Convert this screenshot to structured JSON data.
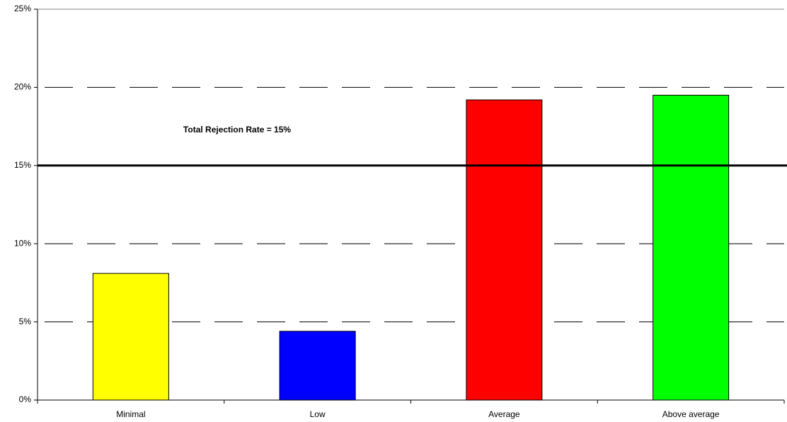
{
  "chart_data": {
    "type": "bar",
    "categories": [
      "Minimal",
      "Low",
      "Average",
      "Above average"
    ],
    "values": [
      8.1,
      4.4,
      19.2,
      19.5
    ],
    "colors": [
      "#ffff00",
      "#0000ff",
      "#ff0000",
      "#00ff00"
    ],
    "ylim": [
      0,
      25
    ],
    "yticks": [
      {
        "value": 0,
        "label": "0%"
      },
      {
        "value": 5,
        "label": "5%"
      },
      {
        "value": 10,
        "label": "10%"
      },
      {
        "value": 15,
        "label": "15%"
      },
      {
        "value": 20,
        "label": "20%"
      },
      {
        "value": 25,
        "label": "25%"
      }
    ],
    "grid": true,
    "reference_line": {
      "value": 15,
      "label": "Total Rejection Rate = 15%"
    }
  }
}
